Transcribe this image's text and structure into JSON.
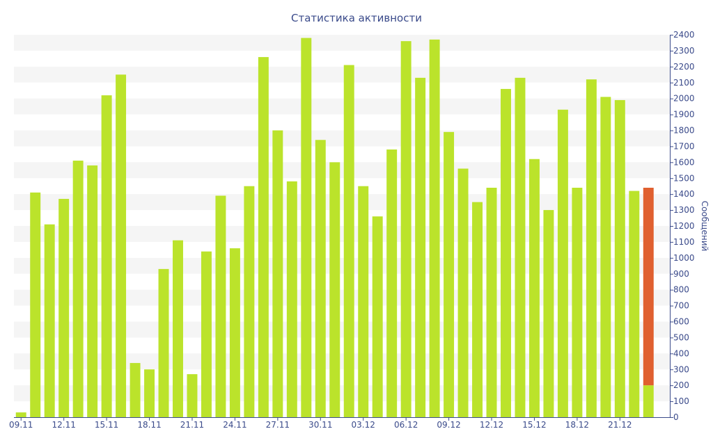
{
  "chart_data": {
    "type": "bar",
    "title": "Статистика активности",
    "ylabel": "Сообщений",
    "xlabel": "",
    "ylim": [
      0,
      2400
    ],
    "y_axis_position": "right",
    "y_ticks": [
      0,
      100,
      200,
      300,
      400,
      500,
      600,
      700,
      800,
      900,
      1000,
      1100,
      1200,
      1300,
      1400,
      1500,
      1600,
      1700,
      1800,
      1900,
      2000,
      2100,
      2200,
      2300,
      2400
    ],
    "x_ticks": [
      "09.11",
      "12.11",
      "15.11",
      "18.11",
      "21.11",
      "24.11",
      "27.11",
      "30.11",
      "03.12",
      "06.12",
      "09.12",
      "12.12",
      "15.12",
      "18.12",
      "21.12"
    ],
    "grid": "horizontal alternating bands",
    "colors": {
      "bar": "#bbe32b",
      "highlight": "#e06030",
      "axis": "#3a4a8a",
      "band": "#f5f5f5"
    },
    "categories": [
      "09.11",
      "10.11",
      "11.11",
      "12.11",
      "13.11",
      "14.11",
      "15.11",
      "16.11",
      "17.11",
      "18.11",
      "19.11",
      "20.11",
      "21.11",
      "22.11",
      "23.11",
      "24.11",
      "25.11",
      "26.11",
      "27.11",
      "28.11",
      "29.11",
      "30.11",
      "01.12",
      "02.12",
      "03.12",
      "04.12",
      "05.12",
      "06.12",
      "07.12",
      "08.12",
      "09.12",
      "10.12",
      "11.12",
      "12.12",
      "13.12",
      "14.12",
      "15.12",
      "16.12",
      "17.12",
      "18.12",
      "19.12",
      "20.12",
      "21.12",
      "22.12",
      "23.12",
      "24.12"
    ],
    "series": [
      {
        "values": [
          30,
          1410,
          1210,
          1370,
          1610,
          1580,
          2020,
          2150,
          340,
          300,
          930,
          1110,
          270,
          1040,
          1390,
          1060,
          1450,
          2260,
          1800,
          1480,
          2380,
          1740,
          1600,
          2210,
          1450,
          1260,
          1680,
          2360,
          2130,
          2370,
          1790,
          1560,
          1350,
          1440,
          2060,
          2130,
          1620,
          1300,
          1930,
          1440,
          2120,
          2010,
          1990,
          1420,
          200,
          0
        ]
      },
      {
        "values": [
          0,
          0,
          0,
          0,
          0,
          0,
          0,
          0,
          0,
          0,
          0,
          0,
          0,
          0,
          0,
          0,
          0,
          0,
          0,
          0,
          0,
          0,
          0,
          0,
          0,
          0,
          0,
          0,
          0,
          0,
          0,
          0,
          0,
          0,
          0,
          0,
          0,
          0,
          0,
          0,
          0,
          0,
          0,
          0,
          1240,
          0
        ]
      }
    ]
  }
}
